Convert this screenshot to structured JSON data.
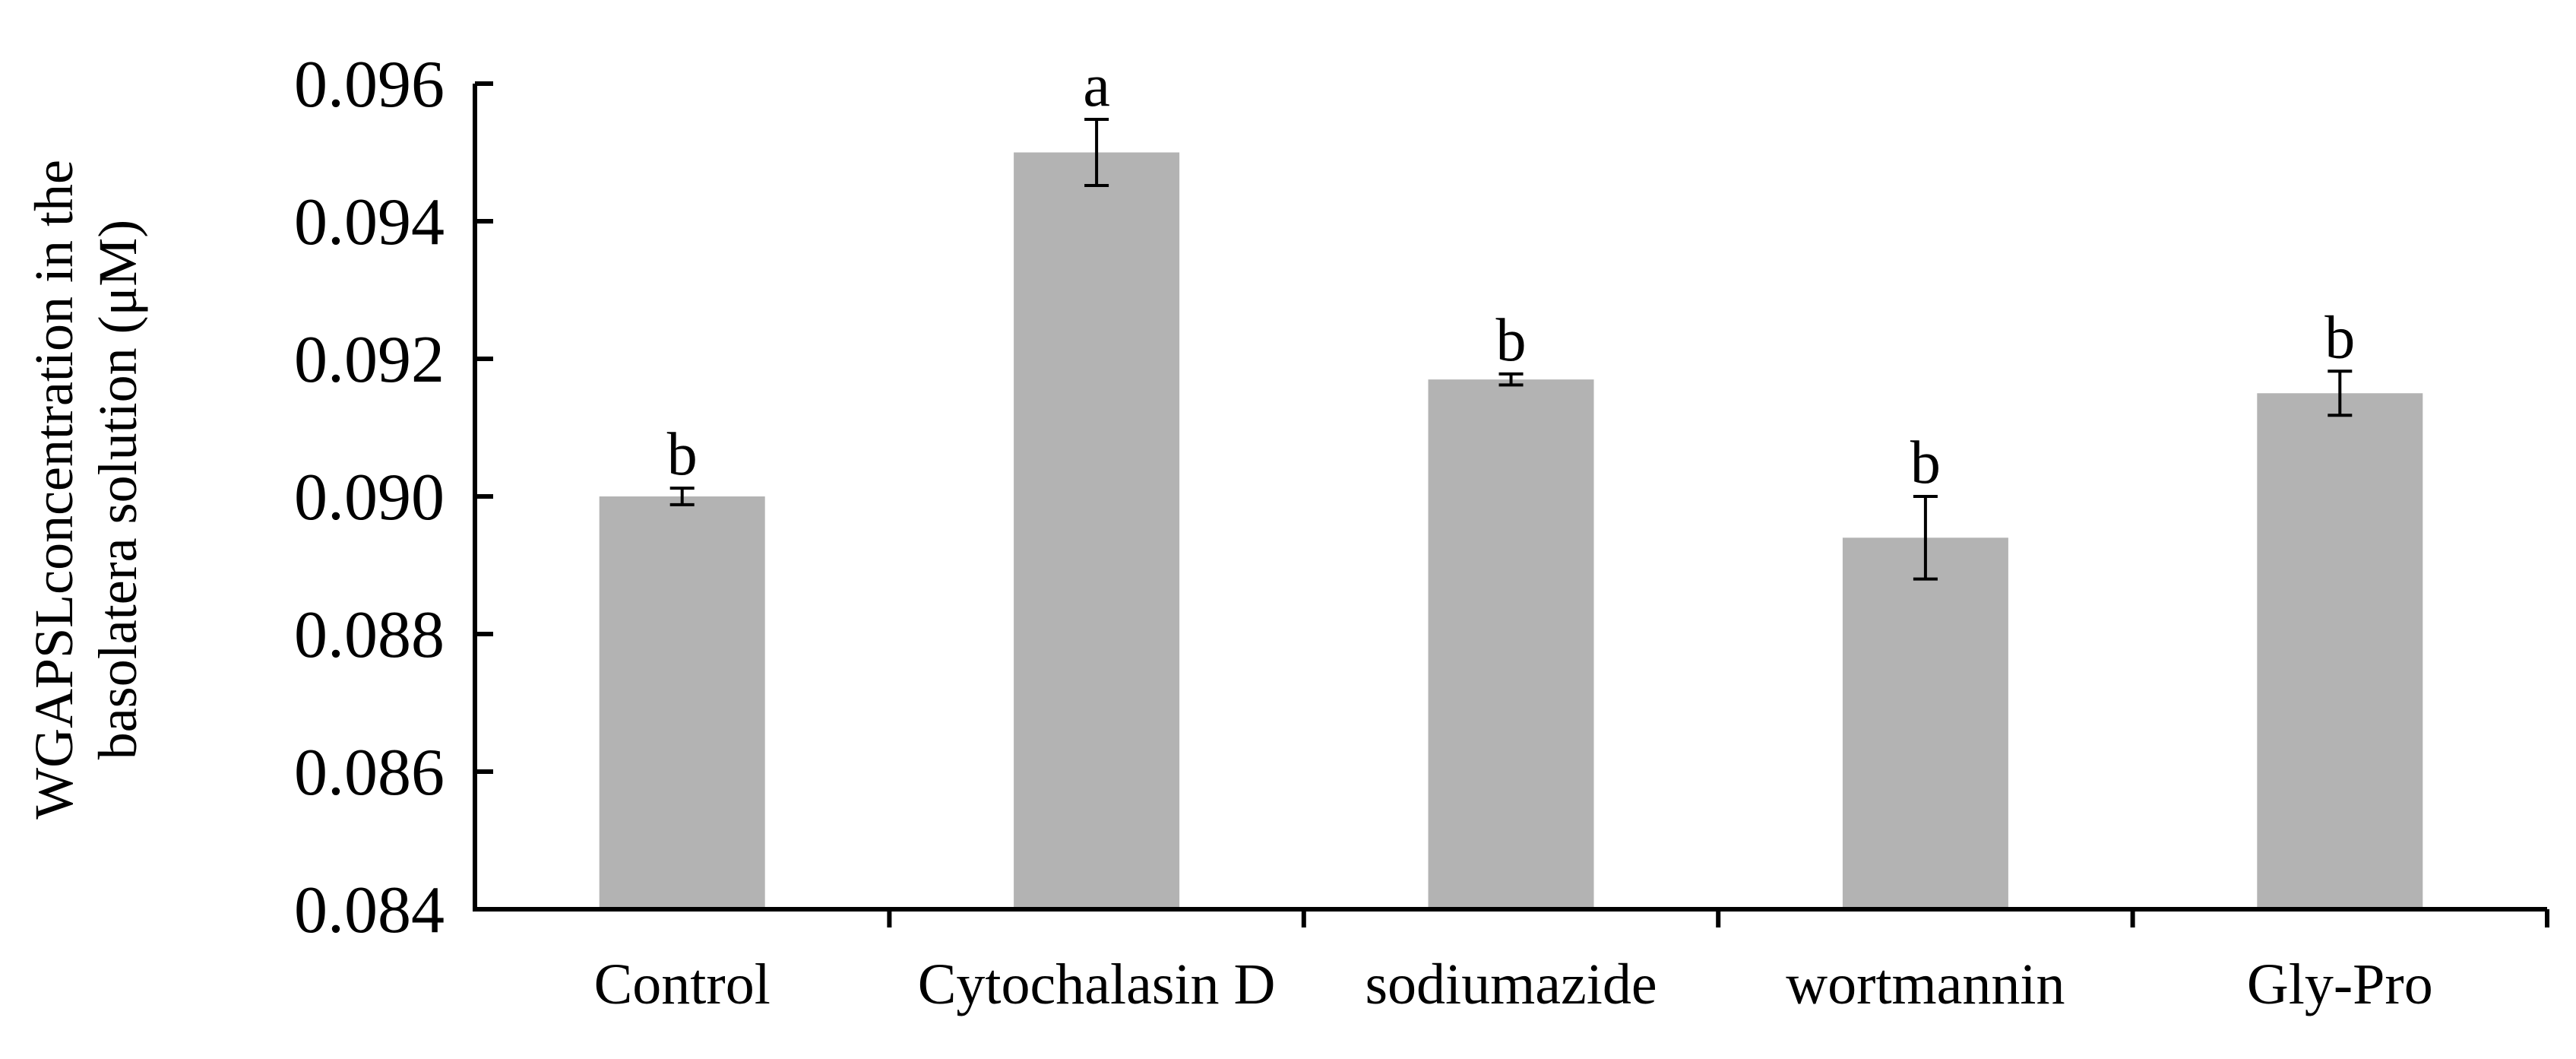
{
  "chart_data": {
    "type": "bar",
    "title": "",
    "xlabel": "",
    "ylabel": [
      "WGAPSLconcentration in the",
      "basolatera solution (μM)"
    ],
    "categories": [
      "Control",
      "Cytochalasin D",
      "sodiumazide",
      "wortmannin",
      "Gly-Pro"
    ],
    "values": [
      0.09,
      0.095,
      0.0917,
      0.0894,
      0.0915
    ],
    "errors": [
      0.00012,
      0.00048,
      8e-05,
      0.0006,
      0.00032
    ],
    "significance_letters": [
      "b",
      "a",
      "b",
      "b",
      "b"
    ],
    "ylim": [
      0.084,
      0.096
    ],
    "yticks": [
      0.084,
      0.086,
      0.088,
      0.09,
      0.092,
      0.094,
      0.096
    ],
    "ytick_labels": [
      "0.084",
      "0.086",
      "0.088",
      "0.090",
      "0.092",
      "0.094",
      "0.096"
    ],
    "grid": false,
    "legend": "none",
    "bar_color": "#b3b3b3",
    "axis_color": "#000000"
  }
}
